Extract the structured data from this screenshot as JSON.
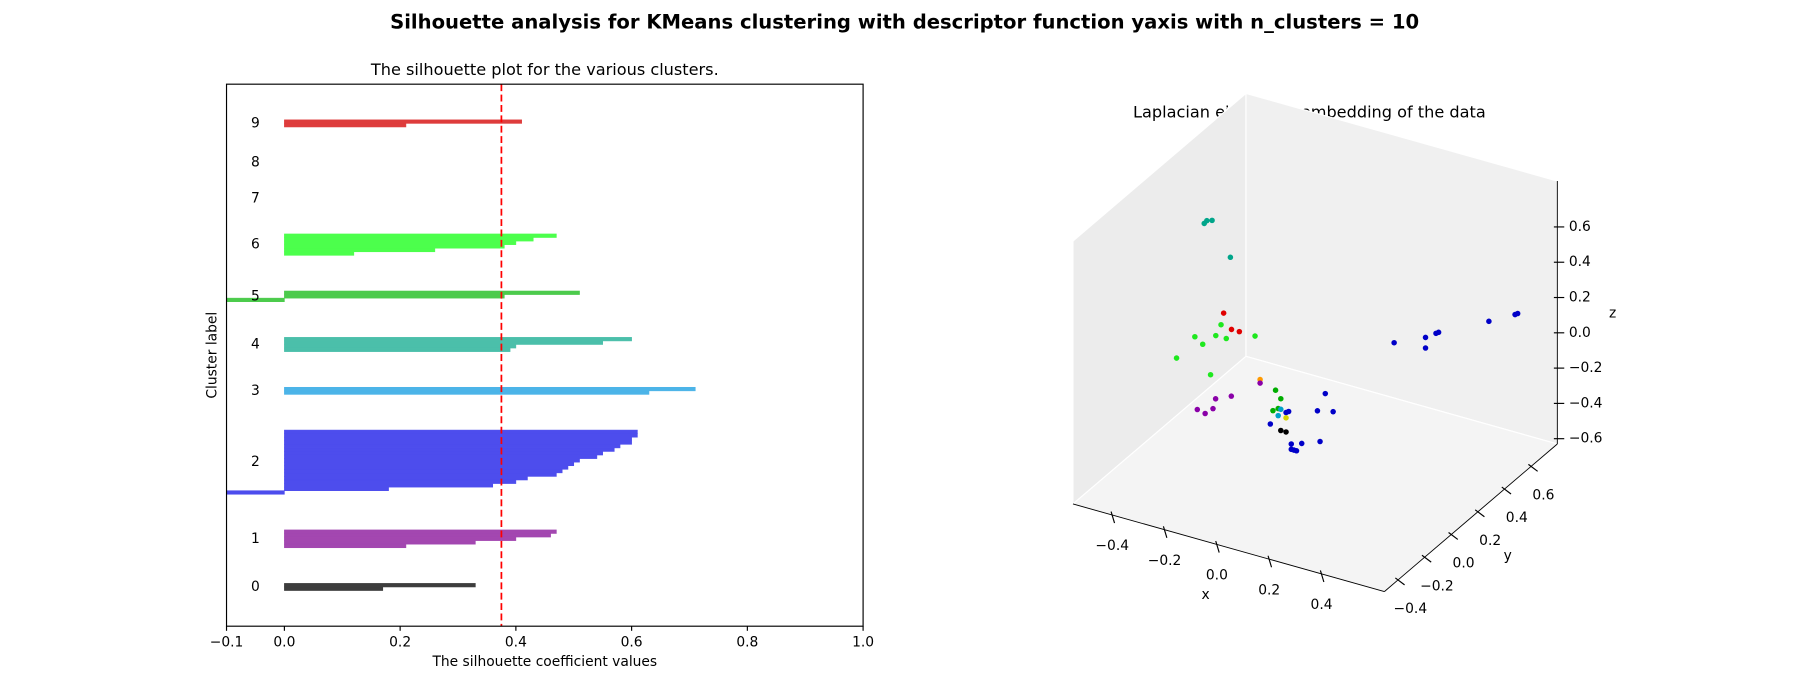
{
  "title": "Silhouette analysis for KMeans clustering with descriptor function yaxis with n_clusters = 10",
  "chart_data": [
    {
      "type": "silhouette",
      "title": "The silhouette plot for the various clusters.",
      "xlabel": "The silhouette coefficient values",
      "ylabel": "Cluster label",
      "xlim": [
        -0.1,
        1.0
      ],
      "ylim": [
        0,
        152
      ],
      "xticks": [
        {
          "value": -0.1,
          "label": "−0.1"
        },
        {
          "value": 0,
          "label": "0.0"
        },
        0.2,
        0.4,
        0.6,
        0.8,
        {
          "value": 1.0,
          "label": "1.0"
        }
      ],
      "average": 0.375,
      "average_color": "#ff0000",
      "clusters": [
        {
          "label": "0",
          "color": "#3d3d3d",
          "values": [
            0.17,
            0.33
          ]
        },
        {
          "label": "1",
          "color": "#a347b0",
          "values": [
            0.21,
            0.33,
            0.4,
            0.46,
            0.47
          ]
        },
        {
          "label": "2",
          "color": "#4d4ded",
          "values": [
            -0.1,
            0.18,
            0.36,
            0.4,
            0.42,
            0.47,
            0.48,
            0.49,
            0.5,
            0.51,
            0.54,
            0.55,
            0.57,
            0.58,
            0.6,
            0.6,
            0.61,
            0.61
          ]
        },
        {
          "label": "3",
          "color": "#4cb4e8",
          "values": [
            0.63,
            0.71
          ]
        },
        {
          "label": "4",
          "color": "#4bbfaa",
          "values": [
            0.39,
            0.4,
            0.55,
            0.6
          ]
        },
        {
          "label": "5",
          "color": "#4ccb4c",
          "values": [
            -0.1,
            0.38,
            0.51
          ]
        },
        {
          "label": "6",
          "color": "#4cff4c",
          "values": [
            0.12,
            0.26,
            0.38,
            0.4,
            0.43,
            0.47
          ]
        },
        {
          "label": "7",
          "values": []
        },
        {
          "label": "8",
          "values": []
        },
        {
          "label": "9",
          "color": "#de3c3c",
          "values": [
            0.21,
            0.41
          ]
        }
      ]
    },
    {
      "type": "scatter3d",
      "title": "Laplacian eigenmap embedding of the data",
      "xlabel": "x",
      "ylabel": "y",
      "zlabel": "z",
      "xlim": [
        -0.55,
        0.64
      ],
      "ylim": [
        -0.5,
        0.8
      ],
      "zlim": [
        -0.63,
        0.86
      ],
      "xticks": [
        {
          "value": -0.4,
          "label": "−0.4"
        },
        {
          "value": -0.2,
          "label": "−0.2"
        },
        {
          "value": 0,
          "label": "0.0"
        },
        0.2,
        0.4
      ],
      "yticks": [
        {
          "value": -0.4,
          "label": "−0.4"
        },
        {
          "value": -0.2,
          "label": "−0.2"
        },
        {
          "value": 0,
          "label": "0.0"
        },
        0.2,
        0.4,
        0.6
      ],
      "zticks": [
        {
          "value": -0.6,
          "label": "−0.6"
        },
        {
          "value": -0.4,
          "label": "−0.4"
        },
        {
          "value": -0.2,
          "label": "−0.2"
        },
        {
          "value": 0,
          "label": "0.0"
        },
        0.2,
        0.4,
        0.6
      ],
      "series": [
        {
          "color": "#00a58a",
          "x": [
            -0.44,
            -0.43,
            -0.41,
            -0.34
          ],
          "y": [
            0.27,
            0.27,
            0.27,
            0.27
          ],
          "z": [
            0.51,
            0.53,
            0.54,
            0.36
          ]
        },
        {
          "color": "#e00000",
          "x": [
            -0.32,
            -0.29,
            -0.26
          ],
          "y": [
            0.18,
            0.18,
            0.18
          ],
          "z": [
            0.11,
            0.03,
            0.03
          ]
        },
        {
          "color": "#1ee81e",
          "x": [
            -0.5,
            -0.43,
            -0.4,
            -0.35,
            -0.33,
            -0.31,
            -0.37,
            -0.2
          ],
          "y": [
            0.18,
            0.18,
            0.18,
            0.18,
            0.18,
            0.18,
            0.18,
            0.18
          ],
          "z": [
            -0.22,
            -0.07,
            -0.1,
            -0.03,
            0.04,
            -0.03,
            -0.26,
            0.03
          ]
        },
        {
          "color": "#0000c8",
          "x": [
            0.24,
            0.36,
            0.36,
            0.4,
            0.41,
            0.47,
            0.57,
            0.58,
            0.16,
            0.13,
            0.19,
            0.02,
            0.01,
            -0.05,
            0.14,
            0.07,
            0.03,
            0.04,
            0.03,
            0.05
          ],
          "y": [
            0.36,
            0.36,
            0.36,
            0.36,
            0.36,
            0.62,
            0.62,
            0.62,
            0,
            0,
            0,
            0,
            0,
            0,
            0,
            0,
            0,
            0,
            0,
            0
          ],
          "z": [
            0.06,
            0.08,
            0.14,
            0.18,
            0.19,
            0.11,
            0.19,
            0.2,
            -0.03,
            -0.14,
            -0.12,
            -0.19,
            -0.2,
            -0.29,
            -0.31,
            -0.35,
            -0.37,
            -0.4,
            -0.4,
            -0.4
          ]
        },
        {
          "color": "#00ad00",
          "x": [
            -0.03,
            -0.01,
            -0.04,
            -0.02
          ],
          "y": [
            0,
            0,
            0,
            0
          ],
          "z": [
            -0.09,
            -0.13,
            -0.21,
            -0.19
          ]
        },
        {
          "color": "#00a0c8",
          "x": [
            -0.02,
            -0.01
          ],
          "y": [
            0,
            0
          ],
          "z": [
            -0.23,
            -0.19
          ]
        },
        {
          "color": "#000000",
          "x": [
            -0.01,
            0.01
          ],
          "y": [
            0,
            0
          ],
          "z": [
            -0.31,
            -0.31
          ]
        },
        {
          "color": "#d4d400",
          "x": [
            0.01
          ],
          "y": [
            0
          ],
          "z": [
            -0.23
          ]
        },
        {
          "color": "#ff9900",
          "x": [
            -0.14
          ],
          "y": [
            0.1
          ],
          "z": [
            -0.14
          ]
        },
        {
          "color": "#8a00a8",
          "x": [
            -0.14,
            -0.25,
            -0.31,
            -0.32,
            -0.38,
            -0.35
          ],
          "y": [
            0.1,
            0.1,
            0.1,
            0.1,
            0.1,
            0.1
          ],
          "z": [
            -0.16,
            -0.28,
            -0.32,
            -0.38,
            -0.41,
            -0.42
          ]
        }
      ]
    }
  ]
}
